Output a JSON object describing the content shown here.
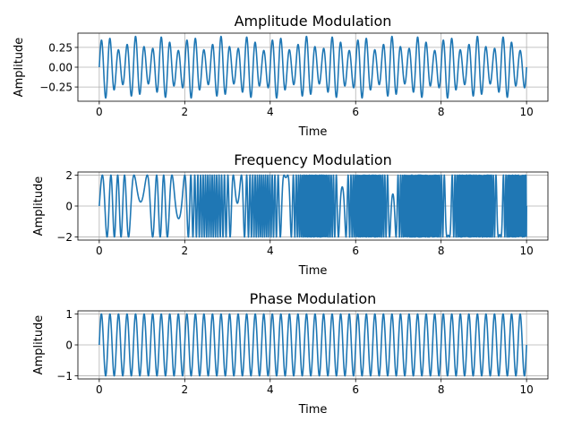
{
  "figure": {
    "background": "#ffffff",
    "line_color": "#1f77b4",
    "grid_color": "#b0b0b0"
  },
  "chart_data": [
    {
      "type": "line",
      "title": "Amplitude Modulation",
      "xlabel": "Time",
      "ylabel": "Amplitude",
      "xlim": [
        -0.5,
        10.5
      ],
      "ylim": [
        -0.43,
        0.43
      ],
      "xticks": [
        0,
        2,
        4,
        6,
        8,
        10
      ],
      "xtick_labels": [
        "0",
        "2",
        "4",
        "6",
        "8",
        "10"
      ],
      "yticks": [
        -0.25,
        0.0,
        0.25
      ],
      "ytick_labels": [
        "−0.25",
        "0.00",
        "0.25"
      ],
      "grid": true,
      "series": [
        {
          "function": "(1 + 0.3*sin(2*pi*1.5*t)) * 0.3 * sin(2*pi*5*t)",
          "x_range": [
            0,
            10
          ],
          "y_range_observed": [
            -0.39,
            0.39
          ]
        }
      ]
    },
    {
      "type": "line",
      "title": "Frequency Modulation",
      "xlabel": "Time",
      "ylabel": "Amplitude",
      "xlim": [
        -0.5,
        10.5
      ],
      "ylim": [
        -2.2,
        2.2
      ],
      "xticks": [
        0,
        2,
        4,
        6,
        8,
        10
      ],
      "xtick_labels": [
        "0",
        "2",
        "4",
        "6",
        "8",
        "10"
      ],
      "yticks": [
        -2,
        0,
        2
      ],
      "ytick_labels": [
        "−2",
        "0",
        "2"
      ],
      "grid": true,
      "series": [
        {
          "function": "2 * sin(2*pi*(3*t + 2.5*sin(2*pi*0.4*t)*t))",
          "x_range": [
            0,
            10
          ],
          "y_range_observed": [
            -2,
            2
          ]
        }
      ]
    },
    {
      "type": "line",
      "title": "Phase Modulation",
      "xlabel": "Time",
      "ylabel": "Amplitude",
      "xlim": [
        -0.5,
        10.5
      ],
      "ylim": [
        -1.1,
        1.1
      ],
      "xticks": [
        0,
        2,
        4,
        6,
        8,
        10
      ],
      "xtick_labels": [
        "0",
        "2",
        "4",
        "6",
        "8",
        "10"
      ],
      "yticks": [
        -1,
        0,
        1
      ],
      "ytick_labels": [
        "−1",
        "0",
        "1"
      ],
      "grid": true,
      "series": [
        {
          "function": "sin(2*pi*5*t)",
          "x_range": [
            0,
            10
          ],
          "y_range_observed": [
            -1,
            1
          ]
        }
      ]
    }
  ]
}
